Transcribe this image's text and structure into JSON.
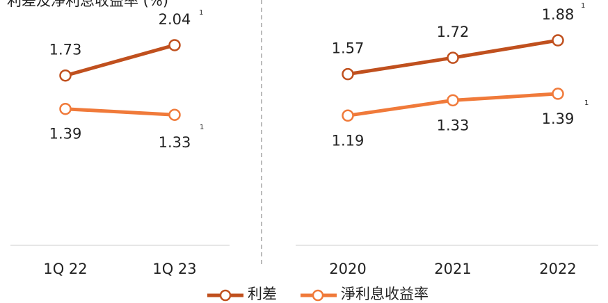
{
  "title": "利差及淨利息收益率 (%)",
  "chart_data": [
    {
      "type": "line",
      "categories": [
        "1Q 22",
        "1Q 23"
      ],
      "ylim": [
        0,
        2.5
      ],
      "series": [
        {
          "name": "利差",
          "color": "#c0501e",
          "values": [
            1.73,
            2.04
          ]
        },
        {
          "name": "淨利息收益率",
          "color": "#f07a3a",
          "values": [
            1.39,
            1.33
          ]
        }
      ],
      "annotations": [
        "1",
        "1"
      ]
    },
    {
      "type": "line",
      "categories": [
        "2020",
        "2021",
        "2022"
      ],
      "ylim": [
        0,
        2.25
      ],
      "series": [
        {
          "name": "利差",
          "color": "#c0501e",
          "values": [
            1.57,
            1.72,
            1.88
          ]
        },
        {
          "name": "淨利息收益率",
          "color": "#f07a3a",
          "values": [
            1.19,
            1.33,
            1.39
          ]
        }
      ],
      "annotations": [
        "1",
        "1"
      ]
    }
  ]
}
